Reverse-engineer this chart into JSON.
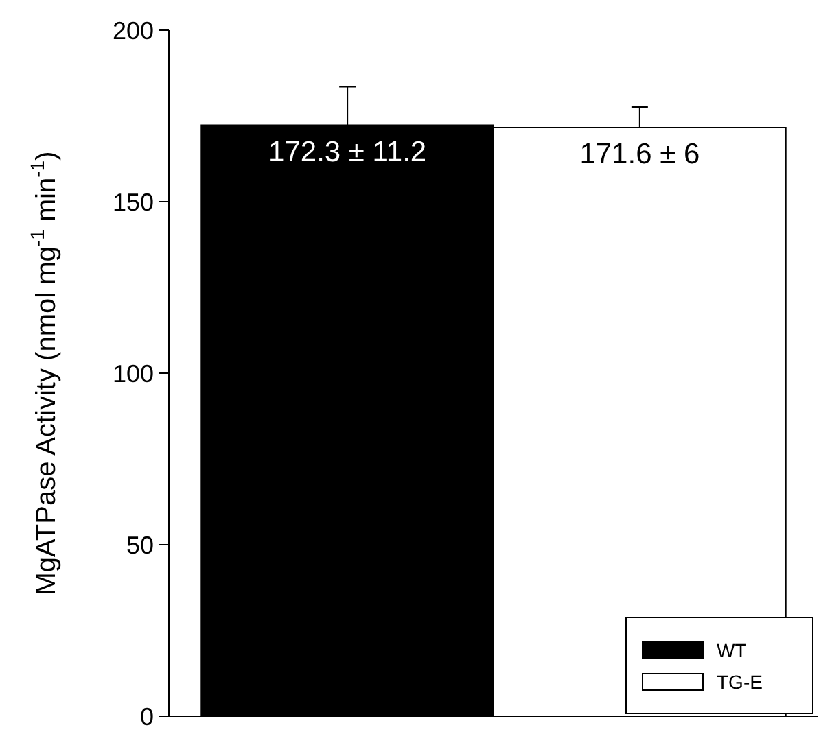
{
  "chart_data": {
    "type": "bar",
    "ylabel": "MgATPase Activity (nmol mg$^{-1}$ min$^{-1}$)",
    "categories": [
      null
    ],
    "series": [
      {
        "name": "WT",
        "color": "#000000",
        "values": [
          172.3
        ],
        "errors": [
          11.2
        ],
        "value_labels": [
          "172.3 ± 11.2"
        ]
      },
      {
        "name": "TG-E",
        "color": "#ffffff",
        "values": [
          171.6
        ],
        "errors": [
          6
        ],
        "value_labels": [
          "171.6 ± 6"
        ]
      }
    ],
    "ylim": [
      0,
      200
    ],
    "yticks": [
      0,
      50,
      100,
      150,
      200
    ],
    "legend": "bottom right",
    "grid": false
  }
}
